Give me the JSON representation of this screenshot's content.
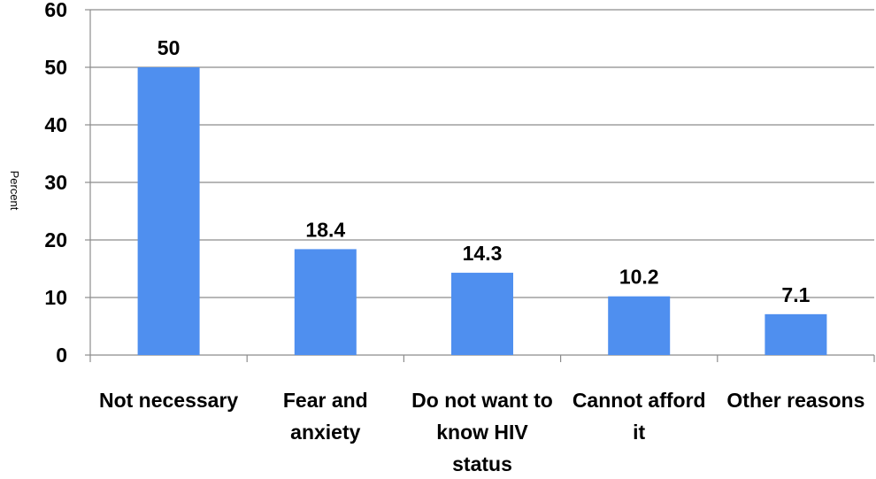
{
  "chart_data": {
    "type": "bar",
    "categories": [
      [
        "Not necessary"
      ],
      [
        "Fear and",
        "anxiety"
      ],
      [
        "Do not want to",
        "know HIV",
        "status"
      ],
      [
        "Cannot afford",
        "it"
      ],
      [
        "Other reasons"
      ]
    ],
    "values": [
      50,
      18.4,
      14.3,
      10.2,
      7.1
    ],
    "data_labels": [
      "50",
      "18.4",
      "14.3",
      "10.2",
      "7.1"
    ],
    "ylabel": "Percent",
    "ylim": [
      0,
      60
    ],
    "yticks": [
      0,
      10,
      20,
      30,
      40,
      50,
      60
    ],
    "grid": true,
    "bar_color": "#4f8fef",
    "grid_color": "#8c8c8c",
    "axis_color": "#8c8c8c"
  }
}
